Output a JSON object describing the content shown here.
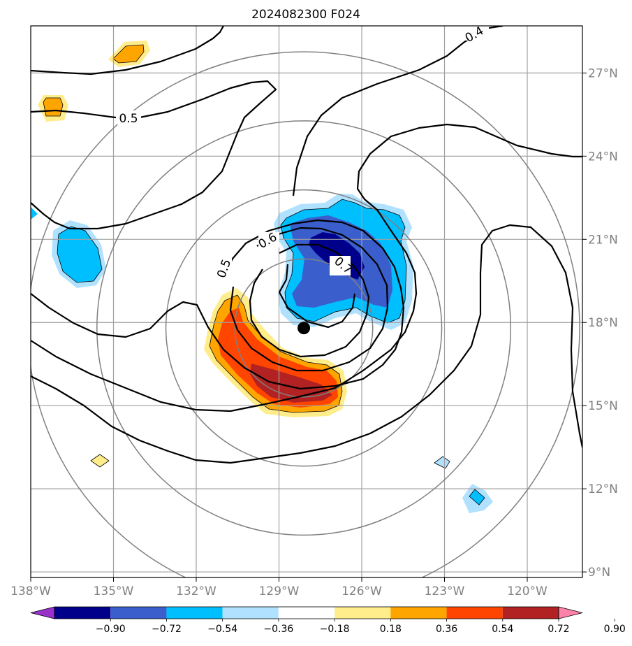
{
  "chart_data": {
    "type": "contour-map",
    "title": "2024082300 F024",
    "x_ticks": [
      "138°W",
      "135°W",
      "132°W",
      "129°W",
      "126°W",
      "123°W",
      "120°W"
    ],
    "x_values": [
      -138,
      -135,
      -132,
      -129,
      -126,
      -123,
      -120
    ],
    "y_ticks": [
      "27°N",
      "24°N",
      "21°N",
      "18°N",
      "15°N",
      "12°N",
      "9°N"
    ],
    "y_values": [
      27,
      24,
      21,
      18,
      15,
      12,
      9
    ],
    "xlim": [
      -138,
      -118
    ],
    "ylim": [
      8.8,
      28.7
    ],
    "grid": true,
    "center": {
      "lon": -128.1,
      "lat": 17.8
    },
    "range_rings_deg": [
      2.5,
      5,
      7.5,
      10
    ],
    "contour_labels": [
      "0.5",
      "0.5",
      "0.6",
      "0.7",
      "0.4"
    ],
    "colorbar": {
      "tick_labels": [
        "−0.90",
        "−0.72",
        "−0.54",
        "−0.36",
        "−0.18",
        "0.18",
        "0.36",
        "0.54",
        "0.72",
        "0.90"
      ],
      "bounds": [
        -0.9,
        -0.72,
        -0.54,
        -0.36,
        -0.18,
        0.18,
        0.36,
        0.54,
        0.72,
        0.9
      ],
      "colors": [
        "#9932cc",
        "#00008b",
        "#3a5fcd",
        "#00bfff",
        "#b0e2ff",
        "#ffffff",
        "#ffec8b",
        "#ffa500",
        "#ff4500",
        "#b22222",
        "#ff82ab"
      ]
    }
  }
}
